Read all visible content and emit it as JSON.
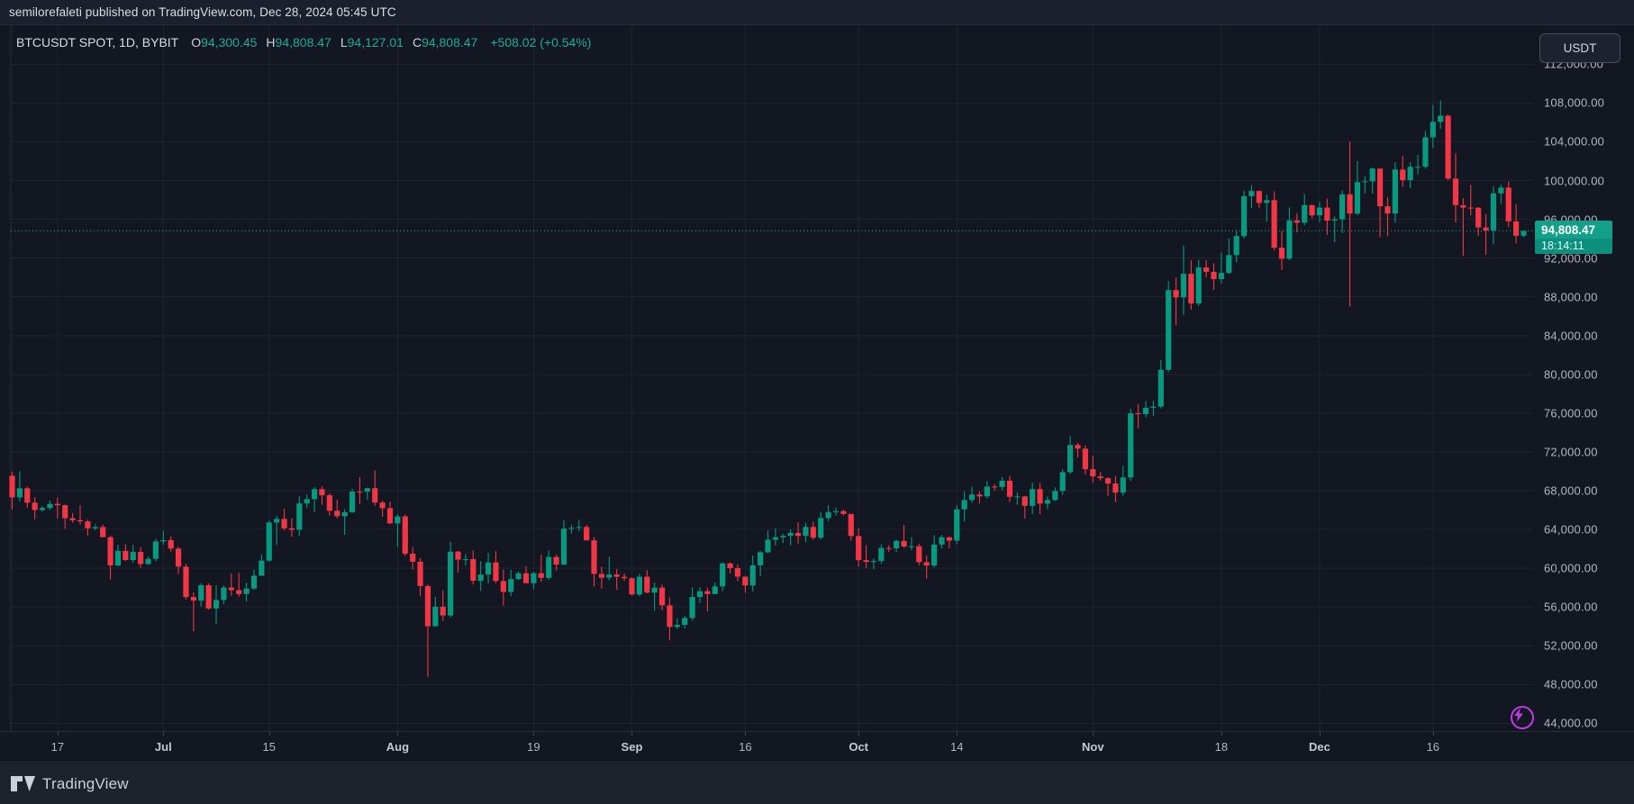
{
  "header": {
    "publish_line": "semilorefaleti published on TradingView.com, Dec 28, 2024 05:45 UTC"
  },
  "legend": {
    "symbol": "BTCUSDT SPOT, 1D, BYBIT",
    "ohlc": [
      {
        "label": "O",
        "value": "94,300.45"
      },
      {
        "label": "H",
        "value": "94,808.47"
      },
      {
        "label": "L",
        "value": "94,127.01"
      },
      {
        "label": "C",
        "value": "94,808.47"
      }
    ],
    "change": "+508.02 (+0.54%)"
  },
  "price_axis": {
    "currency_button": "USDT",
    "ticks": [
      {
        "value": 112000,
        "label": "112,000.00"
      },
      {
        "value": 108000,
        "label": "108,000.00"
      },
      {
        "value": 104000,
        "label": "104,000.00"
      },
      {
        "value": 100000,
        "label": "100,000.00"
      },
      {
        "value": 96000,
        "label": "96,000.00"
      },
      {
        "value": 92000,
        "label": "92,000.00"
      },
      {
        "value": 88000,
        "label": "88,000.00"
      },
      {
        "value": 84000,
        "label": "84,000.00"
      },
      {
        "value": 80000,
        "label": "80,000.00"
      },
      {
        "value": 76000,
        "label": "76,000.00"
      },
      {
        "value": 72000,
        "label": "72,000.00"
      },
      {
        "value": 68000,
        "label": "68,000.00"
      },
      {
        "value": 64000,
        "label": "64,000.00"
      },
      {
        "value": 60000,
        "label": "60,000.00"
      },
      {
        "value": 56000,
        "label": "56,000.00"
      },
      {
        "value": 52000,
        "label": "52,000.00"
      },
      {
        "value": 48000,
        "label": "48,000.00"
      },
      {
        "value": 44000,
        "label": "44,000.00"
      }
    ]
  },
  "last_price": {
    "price": "94,808.47",
    "countdown": "18:14:11",
    "value": 94808.47
  },
  "time_axis": [
    {
      "label": "17",
      "index": 6,
      "major": false
    },
    {
      "label": "Jul",
      "index": 20,
      "major": true
    },
    {
      "label": "15",
      "index": 34,
      "major": false
    },
    {
      "label": "Aug",
      "index": 51,
      "major": true
    },
    {
      "label": "19",
      "index": 69,
      "major": false
    },
    {
      "label": "Sep",
      "index": 82,
      "major": true
    },
    {
      "label": "16",
      "index": 97,
      "major": false
    },
    {
      "label": "Oct",
      "index": 112,
      "major": true
    },
    {
      "label": "14",
      "index": 125,
      "major": false
    },
    {
      "label": "Nov",
      "index": 143,
      "major": true
    },
    {
      "label": "18",
      "index": 160,
      "major": false
    },
    {
      "label": "Dec",
      "index": 173,
      "major": true
    },
    {
      "label": "16",
      "index": 188,
      "major": false
    }
  ],
  "footer": {
    "brand": "TradingView"
  },
  "colors": {
    "background": "#131722",
    "grid": "#1e2330",
    "up": "#089981",
    "down": "#f23645",
    "axis_text": "#b2b5be",
    "badge": "#13a08b",
    "badge_countdown": "#0e8e7c",
    "publish_icon": "#bf3ce0",
    "last_price_line": "#1ca98f"
  },
  "chart_data": {
    "type": "candlestick",
    "title": "BTCUSDT SPOT, 1D, BYBIT",
    "symbol": "BTCUSDT",
    "exchange": "BYBIT",
    "interval": "1D",
    "start_date": "2024-06-11",
    "end_date": "2024-12-28",
    "note": "consecutive daily bars; values are [open, high, low, close] in USDT thousands",
    "unit_multiplier": 1000,
    "ylim_visible": [
      42500,
      113300
    ],
    "grid": true,
    "last_close": 94808.47,
    "last_bar_ohlc": [
      94300.45,
      94808.47,
      94127.01,
      94808.47
    ],
    "candles": [
      [
        69.55,
        69.98,
        66.05,
        67.31
      ],
      [
        67.31,
        70.02,
        66.91,
        68.25
      ],
      [
        68.25,
        68.44,
        66.25,
        66.77
      ],
      [
        66.77,
        67.34,
        65.05,
        66.01
      ],
      [
        66.01,
        66.43,
        65.83,
        66.22
      ],
      [
        66.22,
        66.99,
        66.02,
        66.64
      ],
      [
        66.64,
        67.29,
        65.13,
        66.5
      ],
      [
        66.5,
        66.58,
        64.06,
        65.16
      ],
      [
        65.16,
        65.7,
        64.7,
        64.95
      ],
      [
        64.95,
        66.48,
        64.51,
        64.83
      ],
      [
        64.83,
        65.01,
        63.37,
        64.12
      ],
      [
        64.12,
        64.52,
        63.93,
        64.25
      ],
      [
        64.25,
        64.49,
        63.18,
        63.21
      ],
      [
        63.21,
        63.37,
        58.85,
        60.28
      ],
      [
        60.28,
        62.42,
        60.24,
        61.8
      ],
      [
        61.8,
        62.49,
        60.76,
        60.85
      ],
      [
        60.85,
        62.41,
        60.59,
        61.68
      ],
      [
        61.68,
        62.21,
        60.05,
        60.43
      ],
      [
        60.43,
        61.22,
        60.36,
        60.97
      ],
      [
        60.97,
        63.06,
        60.72,
        62.77
      ],
      [
        62.77,
        63.85,
        62.42,
        62.9
      ],
      [
        62.9,
        63.29,
        61.72,
        62.03
      ],
      [
        62.03,
        62.23,
        59.41,
        60.17
      ],
      [
        60.17,
        60.48,
        56.77,
        57.04
      ],
      [
        57.04,
        57.5,
        53.5,
        56.66
      ],
      [
        56.66,
        58.47,
        56.04,
        58.25
      ],
      [
        58.25,
        58.45,
        55.73,
        55.85
      ],
      [
        55.85,
        58.24,
        54.26,
        56.73
      ],
      [
        56.73,
        58.25,
        56.29,
        58.01
      ],
      [
        58.01,
        59.47,
        57.16,
        57.74
      ],
      [
        57.74,
        59.53,
        57.06,
        57.34
      ],
      [
        57.34,
        58.53,
        56.56,
        57.9
      ],
      [
        57.9,
        59.85,
        57.76,
        59.23
      ],
      [
        59.23,
        61.43,
        59.21,
        60.79
      ],
      [
        60.79,
        64.9,
        60.67,
        64.72
      ],
      [
        64.72,
        65.39,
        62.42,
        65.09
      ],
      [
        65.09,
        66.13,
        63.89,
        64.12
      ],
      [
        64.12,
        65.14,
        63.24,
        63.97
      ],
      [
        63.97,
        67.43,
        63.32,
        66.69
      ],
      [
        66.69,
        67.61,
        66.22,
        67.14
      ],
      [
        67.14,
        68.38,
        65.78,
        68.16
      ],
      [
        68.16,
        68.49,
        66.56,
        67.53
      ],
      [
        67.53,
        67.75,
        65.44,
        65.93
      ],
      [
        65.93,
        67.08,
        65.11,
        65.37
      ],
      [
        65.37,
        66.1,
        63.45,
        65.78
      ],
      [
        65.78,
        68.2,
        65.72,
        67.91
      ],
      [
        67.91,
        69.4,
        66.63,
        67.9
      ],
      [
        67.9,
        68.32,
        67.04,
        68.26
      ],
      [
        68.26,
        70.08,
        66.43,
        66.78
      ],
      [
        66.78,
        67.0,
        65.3,
        66.2
      ],
      [
        66.2,
        66.85,
        64.53,
        64.63
      ],
      [
        64.63,
        65.59,
        62.21,
        65.35
      ],
      [
        65.35,
        65.54,
        61.25,
        61.5
      ],
      [
        61.5,
        62.19,
        59.85,
        60.68
      ],
      [
        60.68,
        61.06,
        57.12,
        58.16
      ],
      [
        58.16,
        58.33,
        48.8,
        54.02
      ],
      [
        54.02,
        57.04,
        53.95,
        56.02
      ],
      [
        56.02,
        57.74,
        54.56,
        55.13
      ],
      [
        55.13,
        62.72,
        54.95,
        61.71
      ],
      [
        61.71,
        61.79,
        59.55,
        60.88
      ],
      [
        60.88,
        61.45,
        60.25,
        60.94
      ],
      [
        60.94,
        61.85,
        58.32,
        58.71
      ],
      [
        58.71,
        60.73,
        57.65,
        59.35
      ],
      [
        59.35,
        61.58,
        58.44,
        60.6
      ],
      [
        60.6,
        61.79,
        58.45,
        58.68
      ],
      [
        58.68,
        59.85,
        56.13,
        57.56
      ],
      [
        57.56,
        59.83,
        57.11,
        58.88
      ],
      [
        58.88,
        59.68,
        58.79,
        59.48
      ],
      [
        59.48,
        60.25,
        58.42,
        58.46
      ],
      [
        58.46,
        59.62,
        57.85,
        59.49
      ],
      [
        59.49,
        61.4,
        58.62,
        59.01
      ],
      [
        59.01,
        61.83,
        58.8,
        61.17
      ],
      [
        61.17,
        61.42,
        59.77,
        60.38
      ],
      [
        60.38,
        64.95,
        60.33,
        64.09
      ],
      [
        64.09,
        64.5,
        63.58,
        64.17
      ],
      [
        64.17,
        65.0,
        63.83,
        64.26
      ],
      [
        64.26,
        64.48,
        62.85,
        62.88
      ],
      [
        62.88,
        63.21,
        58.12,
        59.42
      ],
      [
        59.42,
        60.16,
        57.89,
        59.03
      ],
      [
        59.03,
        61.18,
        58.75,
        59.36
      ],
      [
        59.36,
        59.92,
        57.76,
        59.12
      ],
      [
        59.12,
        59.45,
        58.68,
        58.97
      ],
      [
        58.97,
        59.06,
        57.2,
        57.3
      ],
      [
        57.3,
        59.43,
        57.13,
        59.13
      ],
      [
        59.13,
        59.81,
        57.41,
        57.49
      ],
      [
        57.49,
        58.52,
        55.61,
        58.0
      ],
      [
        58.0,
        58.32,
        55.66,
        56.18
      ],
      [
        56.18,
        56.99,
        52.55,
        53.95
      ],
      [
        53.95,
        54.85,
        53.74,
        54.16
      ],
      [
        54.16,
        55.1,
        53.8,
        54.87
      ],
      [
        54.87,
        58.04,
        54.59,
        57.04
      ],
      [
        57.04,
        58.04,
        56.39,
        57.64
      ],
      [
        57.64,
        57.98,
        55.55,
        57.34
      ],
      [
        57.34,
        58.53,
        57.32,
        58.13
      ],
      [
        58.13,
        60.62,
        57.63,
        60.5
      ],
      [
        60.5,
        60.61,
        59.47,
        60.01
      ],
      [
        60.01,
        60.38,
        58.69,
        59.13
      ],
      [
        59.13,
        59.21,
        57.49,
        58.22
      ],
      [
        58.22,
        61.32,
        57.61,
        60.31
      ],
      [
        60.31,
        61.79,
        59.17,
        61.65
      ],
      [
        61.65,
        63.88,
        61.55,
        62.94
      ],
      [
        62.94,
        64.13,
        62.35,
        63.2
      ],
      [
        63.2,
        63.56,
        62.6,
        63.35
      ],
      [
        63.35,
        64.0,
        62.36,
        63.65
      ],
      [
        63.65,
        64.74,
        62.53,
        63.34
      ],
      [
        63.34,
        64.69,
        62.7,
        64.26
      ],
      [
        64.26,
        64.82,
        62.94,
        63.15
      ],
      [
        63.15,
        65.83,
        62.98,
        65.18
      ],
      [
        65.18,
        66.5,
        64.85,
        65.79
      ],
      [
        65.79,
        66.26,
        65.44,
        65.89
      ],
      [
        65.89,
        66.08,
        65.43,
        65.6
      ],
      [
        65.6,
        65.62,
        62.86,
        63.33
      ],
      [
        63.33,
        64.13,
        60.17,
        60.84
      ],
      [
        60.84,
        62.37,
        60.0,
        60.65
      ],
      [
        60.65,
        61.0,
        59.9,
        60.75
      ],
      [
        60.75,
        62.48,
        60.46,
        62.09
      ],
      [
        62.09,
        62.37,
        61.67,
        62.06
      ],
      [
        62.06,
        62.95,
        61.68,
        62.82
      ],
      [
        62.82,
        64.47,
        62.11,
        62.24
      ],
      [
        62.24,
        63.2,
        61.86,
        62.28
      ],
      [
        62.28,
        62.54,
        60.32,
        60.63
      ],
      [
        60.63,
        61.32,
        58.95,
        60.28
      ],
      [
        60.28,
        63.41,
        60.08,
        62.45
      ],
      [
        62.45,
        63.45,
        62.04,
        63.19
      ],
      [
        63.19,
        63.28,
        62.05,
        62.85
      ],
      [
        62.85,
        66.5,
        62.45,
        66.08
      ],
      [
        66.08,
        67.95,
        64.8,
        67.04
      ],
      [
        67.04,
        68.42,
        66.75,
        67.61
      ],
      [
        67.61,
        67.93,
        66.67,
        67.42
      ],
      [
        67.42,
        69.0,
        67.19,
        68.43
      ],
      [
        68.43,
        68.69,
        68.01,
        68.39
      ],
      [
        68.39,
        69.4,
        68.05,
        69.03
      ],
      [
        69.03,
        69.52,
        66.84,
        67.37
      ],
      [
        67.37,
        67.83,
        66.57,
        67.41
      ],
      [
        67.41,
        67.47,
        65.11,
        66.44
      ],
      [
        66.44,
        68.84,
        65.59,
        68.17
      ],
      [
        68.17,
        68.79,
        65.58,
        66.67
      ],
      [
        66.67,
        67.43,
        66.1,
        67.04
      ],
      [
        67.04,
        68.33,
        66.93,
        67.97
      ],
      [
        67.97,
        70.22,
        67.58,
        69.91
      ],
      [
        69.91,
        73.62,
        69.72,
        72.72
      ],
      [
        72.72,
        72.94,
        71.44,
        72.34
      ],
      [
        72.34,
        72.67,
        69.69,
        70.22
      ],
      [
        70.22,
        71.63,
        68.82,
        69.48
      ],
      [
        69.48,
        69.91,
        69.03,
        69.29
      ],
      [
        69.29,
        69.39,
        67.48,
        68.74
      ],
      [
        68.74,
        69.5,
        66.83,
        67.81
      ],
      [
        67.81,
        70.58,
        67.48,
        69.37
      ],
      [
        69.37,
        76.46,
        69.0,
        75.99
      ],
      [
        75.99,
        76.94,
        74.42,
        75.9
      ],
      [
        75.9,
        77.24,
        75.57,
        76.56
      ],
      [
        76.56,
        77.28,
        75.71,
        76.68
      ],
      [
        76.68,
        81.48,
        76.49,
        80.47
      ],
      [
        80.47,
        89.6,
        80.22,
        88.7
      ],
      [
        88.7,
        90.01,
        85.08,
        87.95
      ],
      [
        87.95,
        93.27,
        86.14,
        90.38
      ],
      [
        90.38,
        91.79,
        86.67,
        87.32
      ],
      [
        87.32,
        91.85,
        87.07,
        91.03
      ],
      [
        91.03,
        91.78,
        90.02,
        90.58
      ],
      [
        90.58,
        91.45,
        88.72,
        89.84
      ],
      [
        89.84,
        92.59,
        89.38,
        90.47
      ],
      [
        90.47,
        94.05,
        90.37,
        92.31
      ],
      [
        92.31,
        94.89,
        91.55,
        94.28
      ],
      [
        94.28,
        98.95,
        94.04,
        98.39
      ],
      [
        98.39,
        99.49,
        97.17,
        98.92
      ],
      [
        98.92,
        98.97,
        97.15,
        97.69
      ],
      [
        97.69,
        98.56,
        95.75,
        97.98
      ],
      [
        97.98,
        98.87,
        92.8,
        93.07
      ],
      [
        93.07,
        94.81,
        90.79,
        91.94
      ],
      [
        91.94,
        97.21,
        91.79,
        95.89
      ],
      [
        95.89,
        96.6,
        94.66,
        95.65
      ],
      [
        95.65,
        98.6,
        95.36,
        97.46
      ],
      [
        97.46,
        97.52,
        96.11,
        96.41
      ],
      [
        96.41,
        97.84,
        95.69,
        97.21
      ],
      [
        97.21,
        98.13,
        94.4,
        95.87
      ],
      [
        95.87,
        96.3,
        93.64,
        96.0
      ],
      [
        96.0,
        99.0,
        94.57,
        98.58
      ],
      [
        98.58,
        104.0,
        87.0,
        96.59
      ],
      [
        96.59,
        102.0,
        96.44,
        99.83
      ],
      [
        99.83,
        100.44,
        98.67,
        99.92
      ],
      [
        99.92,
        101.35,
        98.66,
        101.24
      ],
      [
        101.24,
        101.24,
        94.15,
        97.34
      ],
      [
        97.34,
        98.24,
        94.26,
        96.6
      ],
      [
        96.6,
        101.89,
        95.65,
        101.13
      ],
      [
        101.13,
        102.54,
        99.33,
        100.04
      ],
      [
        100.04,
        101.89,
        99.21,
        101.42
      ],
      [
        101.42,
        102.65,
        100.62,
        101.42
      ],
      [
        101.42,
        105.12,
        101.23,
        104.46
      ],
      [
        104.46,
        107.79,
        103.33,
        106.06
      ],
      [
        106.06,
        108.26,
        105.33,
        106.69
      ],
      [
        106.69,
        106.79,
        100.04,
        100.2
      ],
      [
        100.2,
        102.8,
        95.67,
        97.46
      ],
      [
        97.46,
        98.18,
        92.23,
        97.21
      ],
      [
        97.21,
        99.54,
        96.41,
        97.19
      ],
      [
        97.19,
        97.26,
        94.3,
        95.16
      ],
      [
        95.16,
        96.54,
        92.36,
        94.86
      ],
      [
        94.86,
        99.43,
        93.43,
        98.68
      ],
      [
        98.68,
        99.55,
        97.6,
        99.27
      ],
      [
        99.27,
        99.89,
        95.19,
        95.79
      ],
      [
        95.79,
        97.54,
        93.52,
        94.3
      ],
      [
        94.30045,
        94.80847,
        94.12701,
        94.80847
      ]
    ]
  }
}
